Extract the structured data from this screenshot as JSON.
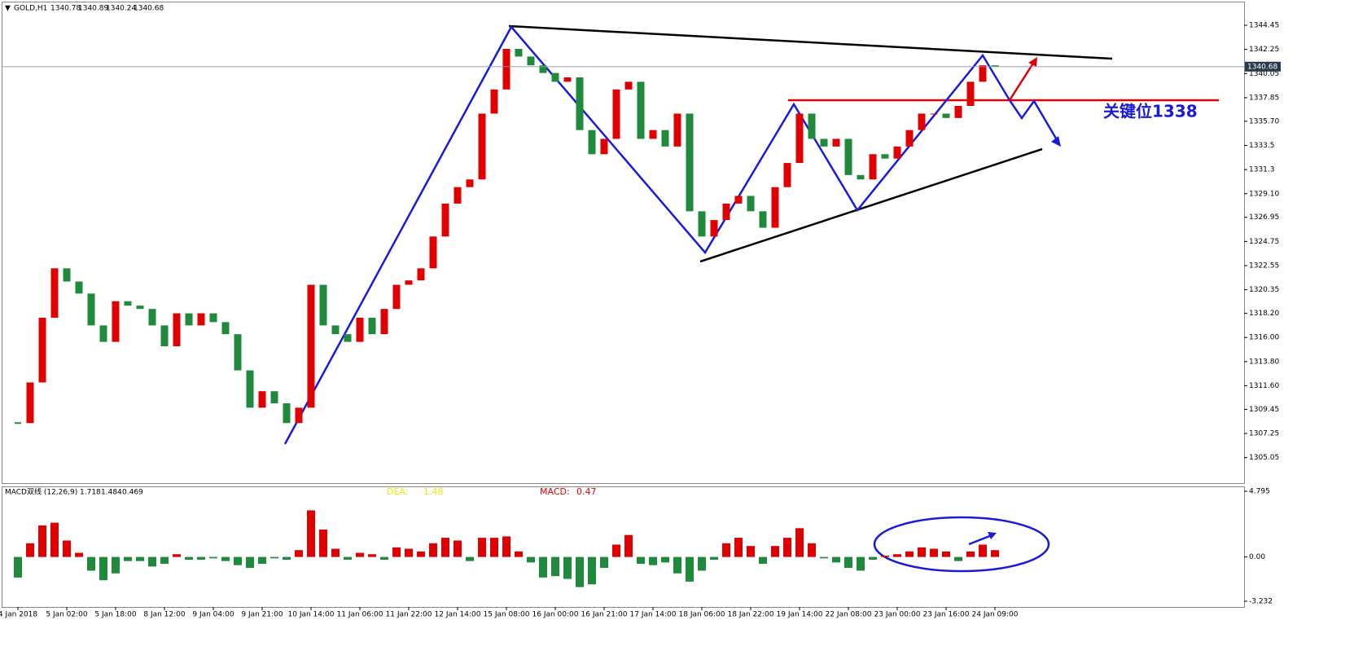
{
  "header": {
    "symbol": "GOLD,H1",
    "ohlc": [
      1340.78,
      1340.89,
      1340.24,
      1340.68
    ]
  },
  "chart_data": [
    {
      "type": "candlestick",
      "categories": [
        "4 Jan 2018",
        null,
        null,
        null,
        "5 Jan 02:00",
        null,
        null,
        null,
        "5 Jan 18:00",
        null,
        null,
        null,
        "8 Jan 12:00",
        null,
        null,
        null,
        "9 Jan 04:00",
        null,
        null,
        null,
        "9 Jan 21:00",
        null,
        null,
        null,
        "10 Jan 14:00",
        null,
        null,
        null,
        "11 Jan 06:00",
        null,
        null,
        null,
        "11 Jan 22:00",
        null,
        null,
        null,
        "12 Jan 14:00",
        null,
        null,
        null,
        "15 Jan 08:00",
        null,
        null,
        null,
        "16 Jan 00:00",
        null,
        null,
        null,
        "16 Jan 21:00",
        null,
        null,
        null,
        "17 Jan 14:00",
        null,
        null,
        null,
        "18 Jan 06:00",
        null,
        null,
        null,
        "18 Jan 22:00",
        null,
        null,
        null,
        "19 Jan 14:00",
        null,
        null,
        null,
        "22 Jan 08:00",
        null,
        null,
        null,
        "23 Jan 00:00",
        null,
        null,
        null,
        "23 Jan 16:00",
        null,
        null,
        null,
        "24 Jan 09:00"
      ],
      "values": [
        1308.2,
        1311.9,
        1317.8,
        1322.3,
        1321.1,
        1320.0,
        1317.1,
        1315.6,
        1319.3,
        1318.9,
        1318.6,
        1317.1,
        1315.2,
        1318.2,
        1317.1,
        1318.2,
        1317.4,
        1316.3,
        1313.0,
        1309.6,
        1311.1,
        1310.0,
        1308.2,
        1309.6,
        1320.8,
        1317.1,
        1316.3,
        1315.6,
        1317.8,
        1316.3,
        1318.6,
        1320.8,
        1321.2,
        1322.3,
        1325.2,
        1328.2,
        1329.7,
        1330.4,
        1336.4,
        1338.6,
        1342.3,
        1341.6,
        1340.8,
        1340.1,
        1339.3,
        1339.7,
        1334.9,
        1332.7,
        1334.1,
        1338.6,
        1339.3,
        1334.1,
        1334.9,
        1333.4,
        1336.4,
        1327.5,
        1325.2,
        1326.7,
        1328.2,
        1328.9,
        1327.5,
        1326.0,
        1329.7,
        1331.9,
        1336.4,
        1334.1,
        1333.4,
        1334.1,
        1330.8,
        1330.4,
        1332.7,
        1332.3,
        1333.4,
        1334.9,
        1336.4,
        1336.4,
        1336.0,
        1337.1,
        1339.3,
        1340.8,
        1340.7
      ],
      "up_color": "#e00000",
      "down_color": "#1f8a3b",
      "ylim": [
        1302.8,
        1346.53
      ],
      "yticks": [
        1344.45,
        1342.25,
        1340.05,
        1337.85,
        {
          "value": 1335.7,
          "label": "1335.70"
        },
        1333.5,
        1331.3,
        {
          "value": 1329.1,
          "label": "1329.10"
        },
        1326.95,
        1324.75,
        1322.55,
        1320.35,
        {
          "value": 1318.2,
          "label": "1318.20"
        },
        {
          "value": 1316,
          "label": "1316.00"
        },
        {
          "value": 1313.8,
          "label": "1313.80"
        },
        {
          "value": 1311.6,
          "label": "1311.60"
        },
        1309.45,
        1307.25,
        1305.05
      ],
      "last_price": 1340.68,
      "annotations": [
        "关键位1338"
      ]
    },
    {
      "type": "bar",
      "title": "MACD双线 (12,26,9)",
      "header_values": [
        1.718,
        1.484,
        0.469
      ],
      "readouts": [
        {
          "label": "DEA:",
          "value": 1.48,
          "color": "#e8e800"
        },
        {
          "label": "MACD:",
          "value": 0.47,
          "color": "#e00000"
        }
      ],
      "values": [
        -1.5,
        1.0,
        2.3,
        2.5,
        1.2,
        0.3,
        -1.0,
        -1.7,
        -1.2,
        -0.3,
        -0.3,
        -0.7,
        -0.5,
        0.2,
        -0.2,
        -0.2,
        -0.1,
        -0.3,
        -0.6,
        -0.8,
        -0.5,
        -0.1,
        -0.2,
        0.5,
        3.4,
        2.0,
        0.6,
        -0.2,
        0.3,
        0.2,
        -0.2,
        0.7,
        0.6,
        0.4,
        1.0,
        1.4,
        1.2,
        -0.3,
        1.4,
        1.4,
        1.5,
        0.4,
        -0.4,
        -1.5,
        -1.4,
        -1.6,
        -2.2,
        -2.0,
        -0.8,
        0.9,
        1.6,
        -0.5,
        -0.6,
        -0.4,
        -1.2,
        -1.8,
        -1.0,
        -0.2,
        1.0,
        1.4,
        0.8,
        -0.5,
        0.8,
        1.4,
        2.1,
        1.0,
        -0.1,
        -0.4,
        -0.8,
        -1.0,
        -0.2,
        0.1,
        0.2,
        0.4,
        0.7,
        0.6,
        0.4,
        -0.3,
        0.4,
        0.9,
        0.5
      ],
      "up_color": "#e00000",
      "down_color": "#1f8a3b",
      "ylim": [
        -3.65,
        5.15
      ],
      "yticks": [
        4.795,
        {
          "value": 0,
          "label": "0.00"
        },
        -3.232
      ]
    }
  ]
}
